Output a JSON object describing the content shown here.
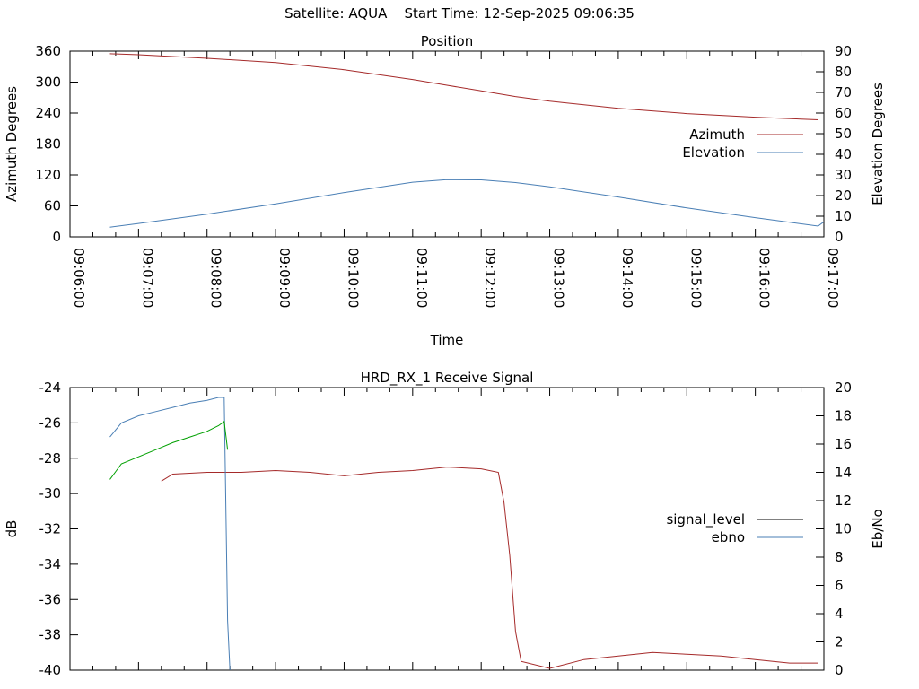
{
  "header": {
    "title": "Satellite: AQUA    Start Time: 12-Sep-2025 09:06:35"
  },
  "colors": {
    "azimuth": "#a52a2a",
    "elevation": "#4a7fb5",
    "signal_level": "#a52a2a",
    "ebno": "#4a7fb5",
    "ebno_secondary": "#00a000",
    "axes": "#000000"
  },
  "chart_data": [
    {
      "type": "line",
      "title": "Position",
      "xlabel": "Time",
      "ylabel": "Azimuth Degrees",
      "y2label": "Elevation Degrees",
      "xlim": [
        "09:06:00",
        "09:17:00"
      ],
      "x_ticks": [
        "09:06:00",
        "09:07:00",
        "09:08:00",
        "09:09:00",
        "09:10:00",
        "09:11:00",
        "09:12:00",
        "09:13:00",
        "09:14:00",
        "09:15:00",
        "09:16:00",
        "09:17:00"
      ],
      "ylim": [
        0,
        360
      ],
      "y_ticks": [
        0,
        60,
        120,
        180,
        240,
        300,
        360
      ],
      "y2lim": [
        0,
        90
      ],
      "y2_ticks": [
        0,
        10,
        20,
        30,
        40,
        50,
        60,
        70,
        80,
        90
      ],
      "legend_position": "right",
      "grid": false,
      "series": [
        {
          "name": "Azimuth",
          "axis": "y",
          "x": [
            "09:06:35",
            "09:07:00",
            "09:08:00",
            "09:09:00",
            "09:10:00",
            "09:11:00",
            "09:11:30",
            "09:12:00",
            "09:12:30",
            "09:13:00",
            "09:14:00",
            "09:15:00",
            "09:16:00",
            "09:16:55"
          ],
          "values": [
            355,
            353,
            346,
            338,
            324,
            305,
            294,
            283,
            272,
            263,
            249,
            239,
            232,
            227
          ]
        },
        {
          "name": "Elevation",
          "axis": "y2",
          "x": [
            "09:06:35",
            "09:07:00",
            "09:08:00",
            "09:09:00",
            "09:10:00",
            "09:11:00",
            "09:11:30",
            "09:12:00",
            "09:12:30",
            "09:13:00",
            "09:14:00",
            "09:15:00",
            "09:16:00",
            "09:16:55",
            "09:17:00"
          ],
          "values": [
            4.7,
            6.5,
            11,
            16,
            21.5,
            26.5,
            27.7,
            27.6,
            26.3,
            24.2,
            19.3,
            14,
            9.3,
            5.2,
            7.3
          ]
        }
      ]
    },
    {
      "type": "line",
      "title": "HRD_RX_1 Receive Signal",
      "xlabel": "",
      "ylabel": "dB",
      "y2label": "Eb/No",
      "xlim": [
        "09:06:00",
        "09:17:00"
      ],
      "ylim": [
        -40,
        -24
      ],
      "y_ticks": [
        -40,
        -38,
        -36,
        -34,
        -32,
        -30,
        -28,
        -26,
        -24
      ],
      "y2lim": [
        0,
        20
      ],
      "y2_ticks": [
        0,
        2,
        4,
        6,
        8,
        10,
        12,
        14,
        16,
        18,
        20
      ],
      "legend_position": "right",
      "grid": false,
      "series": [
        {
          "name": "signal_level",
          "axis": "y",
          "x": [
            "09:07:20",
            "09:07:30",
            "09:08:00",
            "09:08:30",
            "09:09:00",
            "09:09:30",
            "09:10:00",
            "09:10:30",
            "09:11:00",
            "09:11:30",
            "09:12:00",
            "09:12:15",
            "09:12:20",
            "09:12:25",
            "09:12:30",
            "09:12:35",
            "09:13:00",
            "09:13:30",
            "09:14:00",
            "09:14:30",
            "09:15:00",
            "09:15:30",
            "09:16:00",
            "09:16:30",
            "09:16:55"
          ],
          "values": [
            -29.3,
            -28.9,
            -28.8,
            -28.8,
            -28.7,
            -28.8,
            -29.0,
            -28.8,
            -28.7,
            -28.5,
            -28.6,
            -28.8,
            -30.5,
            -33.5,
            -37.8,
            -39.5,
            -39.9,
            -39.4,
            -39.2,
            -39.0,
            -39.1,
            -39.2,
            -39.4,
            -39.6,
            -39.6
          ]
        },
        {
          "name": "ebno",
          "axis": "y2",
          "x": [
            "09:06:35",
            "09:06:45",
            "09:07:00",
            "09:07:15",
            "09:07:30",
            "09:07:45",
            "09:08:00",
            "09:08:10",
            "09:08:15",
            "09:08:18",
            "09:08:20"
          ],
          "values": [
            16.5,
            17.5,
            18.0,
            18.3,
            18.6,
            18.9,
            19.1,
            19.3,
            19.3,
            3.5,
            0
          ]
        },
        {
          "name": "",
          "axis": "y2",
          "x": [
            "09:06:35",
            "09:06:45",
            "09:07:00",
            "09:07:15",
            "09:07:30",
            "09:07:45",
            "09:08:00",
            "09:08:10",
            "09:08:15",
            "09:08:18"
          ],
          "values": [
            13.5,
            14.6,
            15.1,
            15.6,
            16.1,
            16.5,
            16.9,
            17.3,
            17.6,
            15.6
          ]
        }
      ]
    }
  ]
}
